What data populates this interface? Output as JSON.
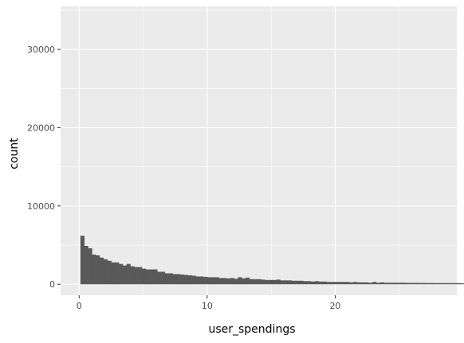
{
  "chart_data": {
    "type": "bar",
    "subtype": "histogram",
    "title": "",
    "xlabel": "user_spendings",
    "ylabel": "count",
    "xlim": [
      -1.45,
      29.5
    ],
    "ylim": [
      -1400,
      35500
    ],
    "x_ticks": [
      0,
      10,
      20
    ],
    "x_tick_labels": [
      "0",
      "10",
      "20"
    ],
    "y_ticks": [
      0,
      10000,
      20000,
      30000
    ],
    "y_tick_labels": [
      "0",
      "10000",
      "20000",
      "30000"
    ],
    "grid": true,
    "bin_start": 0.1,
    "bin_width": 0.3,
    "values": [
      6200,
      4900,
      4600,
      3800,
      3700,
      3400,
      3200,
      3000,
      2800,
      2800,
      2600,
      2400,
      2600,
      2300,
      2200,
      2200,
      2000,
      1900,
      1900,
      1900,
      1600,
      1600,
      1400,
      1400,
      1300,
      1300,
      1250,
      1200,
      1150,
      1100,
      1000,
      1000,
      950,
      900,
      900,
      900,
      800,
      800,
      750,
      800,
      700,
      900,
      750,
      850,
      650,
      650,
      650,
      600,
      550,
      550,
      550,
      600,
      500,
      500,
      500,
      450,
      450,
      450,
      400,
      400,
      350,
      400,
      350,
      350,
      300,
      300,
      300,
      300,
      300,
      300,
      250,
      300,
      250,
      250,
      250,
      200,
      300,
      200,
      250,
      200,
      200,
      200,
      200,
      200,
      200,
      180,
      180,
      180,
      170,
      170,
      160,
      160,
      150,
      150,
      150,
      150,
      150,
      150,
      150,
      120,
      120,
      120,
      120,
      120,
      120,
      110,
      110,
      110,
      110,
      100,
      100,
      100,
      100,
      100,
      100,
      100,
      100,
      100,
      100,
      100,
      100,
      100,
      100,
      100,
      100,
      100,
      100,
      100,
      100,
      100,
      100,
      100,
      100,
      100,
      100,
      100,
      100,
      100,
      100,
      100,
      100,
      100,
      100,
      100,
      100,
      100,
      100,
      100,
      100,
      100
    ]
  },
  "colors": {
    "panel_bg": "#ebebeb",
    "grid_major": "#ffffff",
    "bar_fill": "#595959",
    "tick_text": "#4d4d4d",
    "tick_mark": "#333333",
    "title_text": "#000000"
  }
}
